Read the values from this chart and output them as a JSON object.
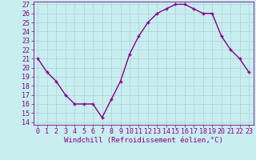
{
  "x": [
    0,
    1,
    2,
    3,
    4,
    5,
    6,
    7,
    8,
    9,
    10,
    11,
    12,
    13,
    14,
    15,
    16,
    17,
    18,
    19,
    20,
    21,
    22,
    23
  ],
  "y": [
    21,
    19.5,
    18.5,
    17,
    16,
    16,
    16,
    14.5,
    16.5,
    18.5,
    21.5,
    23.5,
    25,
    26,
    26.5,
    27,
    27,
    26.5,
    26,
    26,
    23.5,
    22,
    21,
    19.5
  ],
  "line_color": "#880088",
  "marker": "+",
  "bg_color": "#c8eef0",
  "grid_color": "#b0d8da",
  "xlabel": "Windchill (Refroidissement éolien,°C)",
  "ylim_min": 14,
  "ylim_max": 27,
  "yticks": [
    14,
    15,
    16,
    17,
    18,
    19,
    20,
    21,
    22,
    23,
    24,
    25,
    26,
    27
  ],
  "xticks": [
    0,
    1,
    2,
    3,
    4,
    5,
    6,
    7,
    8,
    9,
    10,
    11,
    12,
    13,
    14,
    15,
    16,
    17,
    18,
    19,
    20,
    21,
    22,
    23
  ],
  "tick_color": "#880088",
  "label_color": "#880088",
  "font_size_xlabel": 6.5,
  "font_size_ticks": 6,
  "line_width": 1.0,
  "marker_size": 3.5,
  "marker_edge_width": 1.0
}
